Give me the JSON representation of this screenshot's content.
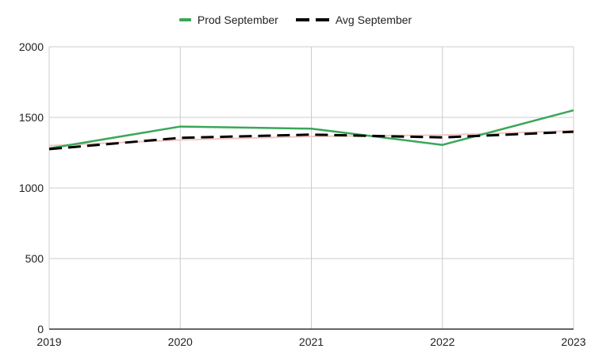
{
  "chart_data": {
    "type": "line",
    "title": "",
    "xlabel": "",
    "ylabel": "",
    "categories": [
      "2019",
      "2020",
      "2021",
      "2022",
      "2023"
    ],
    "ylim": [
      0,
      2000
    ],
    "yticks": [
      "0",
      "500",
      "1000",
      "1500",
      "2000"
    ],
    "grid": true,
    "legend_position": "top",
    "series": [
      {
        "name": "Prod September",
        "values": [
          1280,
          1435,
          1420,
          1305,
          1550
        ],
        "color": "#3aa757",
        "style": "solid"
      },
      {
        "name": "Avg September",
        "values": [
          1275,
          1355,
          1378,
          1358,
          1398
        ],
        "color": "#000000",
        "style": "dashed"
      }
    ],
    "trendline": {
      "values": [
        1300,
        1340,
        1365,
        1375,
        1405
      ],
      "color": "#f4c7c3"
    }
  }
}
